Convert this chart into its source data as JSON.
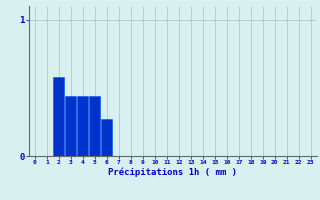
{
  "xlabel": "Précipitations 1h ( mm )",
  "bar_values": [
    0,
    0,
    0.58,
    0.44,
    0.44,
    0.44,
    0.27,
    0,
    0,
    0,
    0,
    0,
    0,
    0,
    0,
    0,
    0,
    0,
    0,
    0,
    0,
    0,
    0,
    0
  ],
  "bar_color": "#0033cc",
  "bar_edge_color": "#0055ee",
  "background_color": "#d8f0f0",
  "plot_bg_color": "#d8f0f0",
  "grid_color": "#a8c0c0",
  "axis_color": "#666666",
  "text_color": "#0000cc",
  "ylim": [
    0,
    1.1
  ],
  "yticks": [
    0,
    1
  ],
  "xlim": [
    -0.5,
    23.5
  ],
  "xticks": [
    0,
    1,
    2,
    3,
    4,
    5,
    6,
    7,
    8,
    9,
    10,
    11,
    12,
    13,
    14,
    15,
    16,
    17,
    18,
    19,
    20,
    21,
    22,
    23
  ],
  "num_bars": 24
}
